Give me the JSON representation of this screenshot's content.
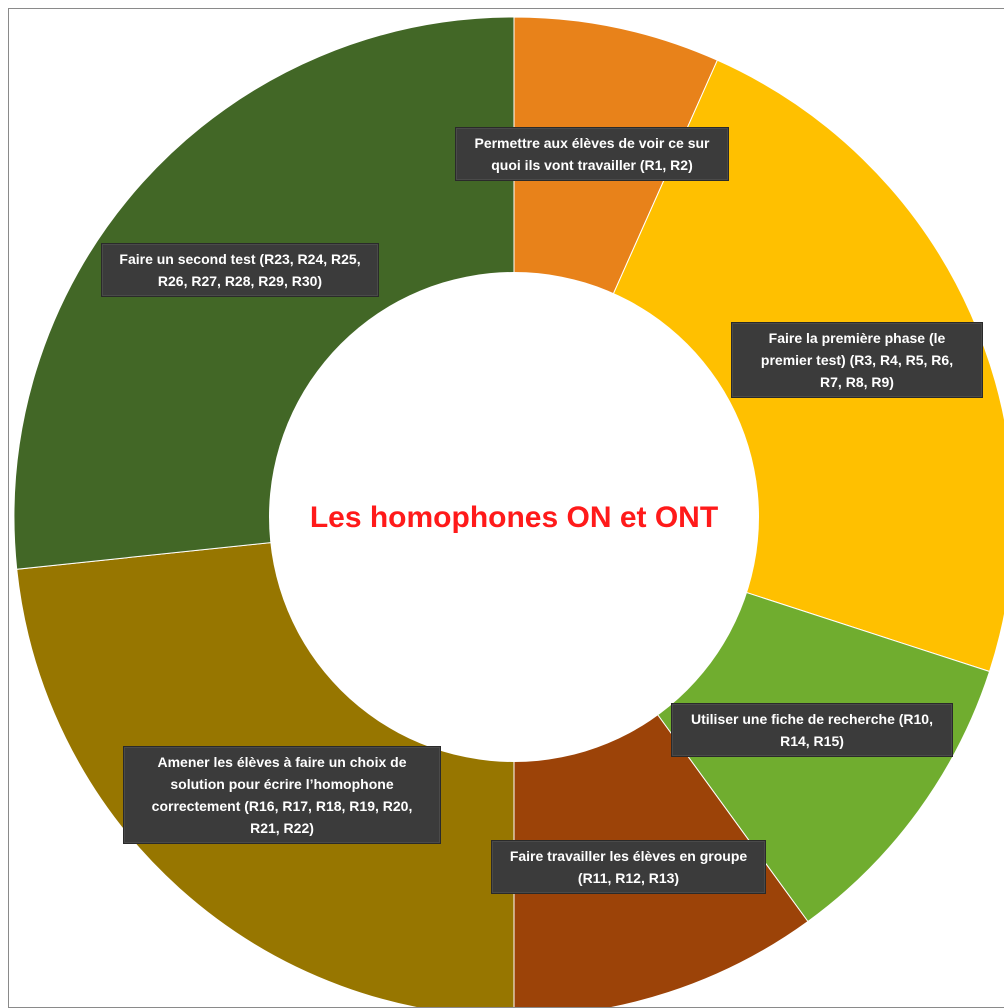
{
  "chart_data": {
    "type": "pie",
    "variant": "donut",
    "title": "Les homophones ON et ONT",
    "title_color": "#ff1a1a",
    "slices": [
      {
        "label": "Permettre aux élèves de voir ce sur quoi ils vont travailler (R1, R2)",
        "value": 2,
        "color": "#e8821a"
      },
      {
        "label": "Faire la première phase (le premier test) (R3, R4, R5, R6, R7, R8, R9)",
        "value": 7,
        "color": "#ffc000"
      },
      {
        "label": "Utiliser une fiche de recherche (R10, R14, R15)",
        "value": 3,
        "color": "#70ad2f"
      },
      {
        "label": "Faire travailler les élèves en groupe (R11, R12, R13)",
        "value": 3,
        "color": "#9c4308"
      },
      {
        "label": "Amener les élèves à faire un choix de solution pour écrire l’homophone correctement (R16, R17, R18, R19, R20, R21, R22)",
        "value": 7,
        "color": "#977600"
      },
      {
        "label": "Faire un second test (R23, R24, R25, R26, R27, R28, R29, R30)",
        "value": 8,
        "color": "#426726"
      }
    ]
  }
}
